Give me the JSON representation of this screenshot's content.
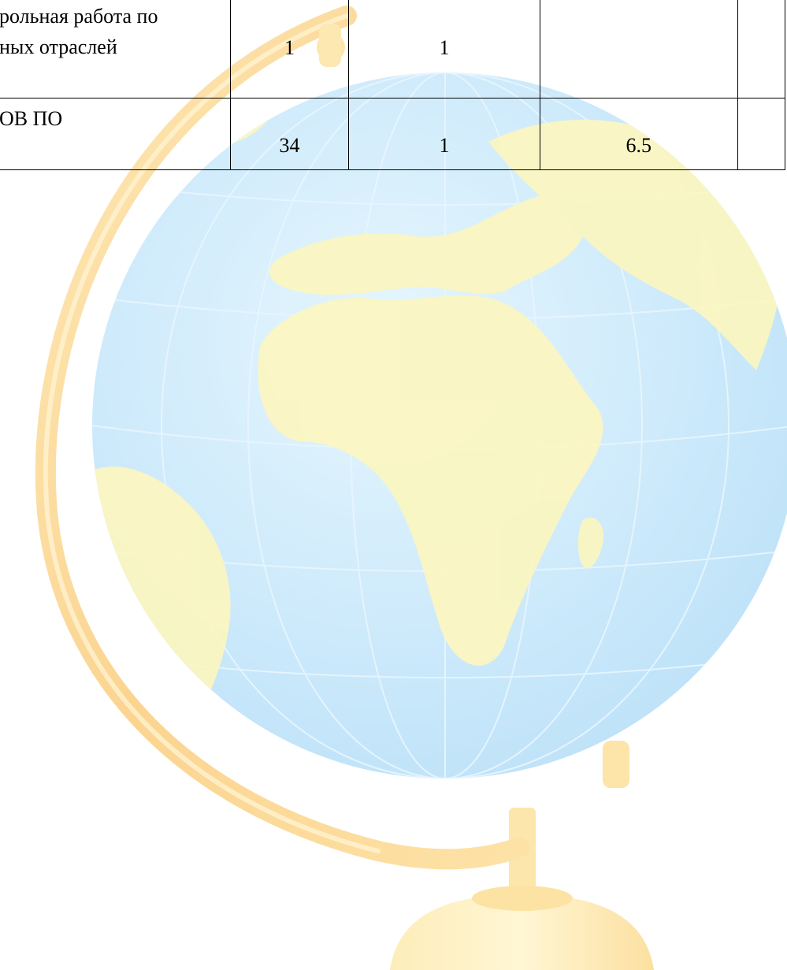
{
  "background": {
    "icon": "desk-globe",
    "colors": {
      "ocean": "#cde9fb",
      "land": "#fbf6c4",
      "stand": "#fde7a3",
      "ring": "#fbd08a"
    }
  },
  "table": {
    "rows": [
      {
        "label_line1": "рольная работа по",
        "label_line2": "ных отраслей",
        "col2": "1",
        "col3": "1",
        "col4": "",
        "col5": ""
      },
      {
        "label_line1": "ОВ ПО",
        "label_line2": "",
        "col2": "34",
        "col3": "1",
        "col4": "6.5",
        "col5": ""
      }
    ]
  }
}
